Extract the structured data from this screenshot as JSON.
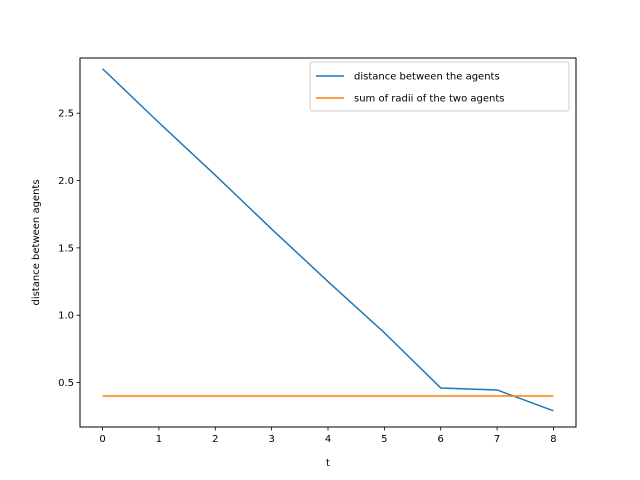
{
  "chart_data": {
    "type": "line",
    "title": "",
    "xlabel": "t",
    "ylabel": "distance between agents",
    "xlim": [
      -0.4,
      8.4
    ],
    "ylim": [
      0.17,
      2.91
    ],
    "xticks": [
      0,
      1,
      2,
      3,
      4,
      5,
      6,
      7,
      8
    ],
    "xtick_labels": [
      "0",
      "1",
      "2",
      "3",
      "4",
      "5",
      "6",
      "7",
      "8"
    ],
    "yticks": [
      0.5,
      1.0,
      1.5,
      2.0,
      2.5
    ],
    "ytick_labels": [
      "0.5",
      "1.0",
      "1.5",
      "2.0",
      "2.5"
    ],
    "grid": false,
    "legend_position": "top-right",
    "x": [
      0,
      1,
      2,
      3,
      4,
      5,
      6,
      7,
      8
    ],
    "series": [
      {
        "name": "distance between the agents",
        "color": "#1f77b4",
        "values": [
          2.83,
          2.43,
          2.04,
          1.64,
          1.25,
          0.87,
          0.46,
          0.445,
          0.29
        ]
      },
      {
        "name": "sum of radii of the two agents",
        "color": "#ff7f0e",
        "values": [
          0.4,
          0.4,
          0.4,
          0.4,
          0.4,
          0.4,
          0.4,
          0.4,
          0.4
        ]
      }
    ]
  }
}
